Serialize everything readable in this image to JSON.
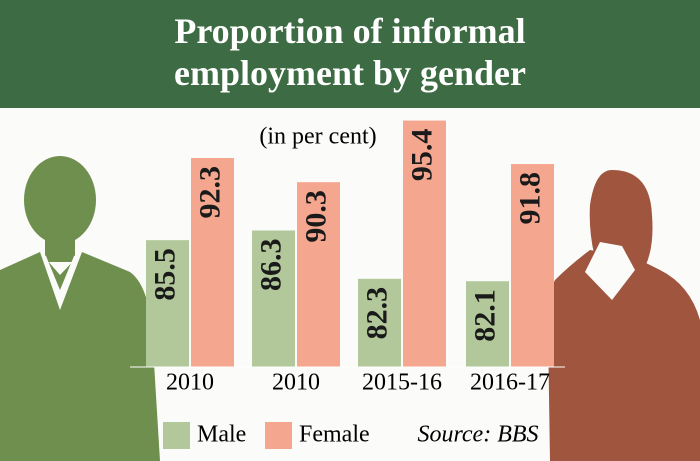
{
  "chart_data": {
    "type": "bar",
    "title": "Proportion of informal employment by gender",
    "subtitle": "(in per cent)",
    "source": "Source: BBS",
    "categories": [
      "2010",
      "2010",
      "2015-16",
      "2016-17"
    ],
    "series": [
      {
        "name": "Male",
        "color": "#b2c79a",
        "values": [
          85.5,
          86.3,
          82.3,
          82.1
        ]
      },
      {
        "name": "Female",
        "color": "#f5a68e",
        "values": [
          92.3,
          90.3,
          95.4,
          91.8
        ]
      }
    ],
    "ylim": [
      75,
      100
    ]
  }
}
